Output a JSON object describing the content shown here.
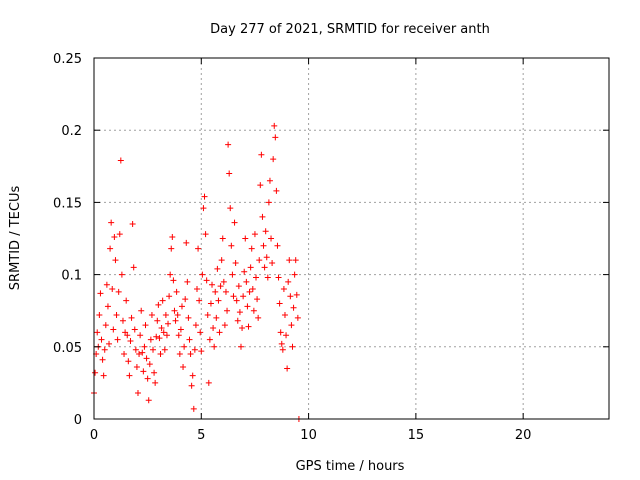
{
  "chart_data": {
    "type": "scatter",
    "title": "Day 277 of 2021, SRMTID for receiver anth",
    "xlabel": "GPS time / hours",
    "ylabel": "SRMTID / TECUs",
    "xlim": [
      0,
      24
    ],
    "ylim": [
      0,
      0.25
    ],
    "xticks": [
      0,
      5,
      10,
      15,
      20
    ],
    "xtick_labels": [
      "0",
      "5",
      "10",
      "15",
      "20"
    ],
    "yticks": [
      0,
      0.05,
      0.1,
      0.15,
      0.2,
      0.25
    ],
    "ytick_labels": [
      "0",
      "0.05",
      "0.1",
      "0.15",
      "0.2",
      "0.25"
    ],
    "grid": true,
    "marker": "+",
    "color": "#ff0000",
    "series": [
      {
        "name": "SRMTID",
        "points": [
          [
            0.0,
            0.018
          ],
          [
            0.05,
            0.032
          ],
          [
            0.1,
            0.045
          ],
          [
            0.15,
            0.06
          ],
          [
            0.2,
            0.05
          ],
          [
            0.25,
            0.072
          ],
          [
            0.3,
            0.087
          ],
          [
            0.35,
            0.055
          ],
          [
            0.4,
            0.041
          ],
          [
            0.45,
            0.03
          ],
          [
            0.5,
            0.048
          ],
          [
            0.55,
            0.065
          ],
          [
            0.6,
            0.093
          ],
          [
            0.65,
            0.078
          ],
          [
            0.7,
            0.052
          ],
          [
            0.75,
            0.118
          ],
          [
            0.8,
            0.136
          ],
          [
            0.85,
            0.09
          ],
          [
            0.9,
            0.062
          ],
          [
            0.95,
            0.126
          ],
          [
            1.0,
            0.11
          ],
          [
            1.05,
            0.072
          ],
          [
            1.1,
            0.055
          ],
          [
            1.15,
            0.088
          ],
          [
            1.2,
            0.128
          ],
          [
            1.25,
            0.179
          ],
          [
            1.3,
            0.1
          ],
          [
            1.35,
            0.068
          ],
          [
            1.4,
            0.045
          ],
          [
            1.45,
            0.06
          ],
          [
            1.5,
            0.082
          ],
          [
            1.55,
            0.058
          ],
          [
            1.6,
            0.04
          ],
          [
            1.65,
            0.03
          ],
          [
            1.7,
            0.054
          ],
          [
            1.75,
            0.07
          ],
          [
            1.8,
            0.135
          ],
          [
            1.85,
            0.105
          ],
          [
            1.9,
            0.062
          ],
          [
            1.95,
            0.048
          ],
          [
            2.0,
            0.036
          ],
          [
            2.05,
            0.018
          ],
          [
            2.1,
            0.045
          ],
          [
            2.15,
            0.058
          ],
          [
            2.2,
            0.075
          ],
          [
            2.25,
            0.046
          ],
          [
            2.3,
            0.033
          ],
          [
            2.35,
            0.05
          ],
          [
            2.4,
            0.065
          ],
          [
            2.45,
            0.042
          ],
          [
            2.5,
            0.028
          ],
          [
            2.55,
            0.013
          ],
          [
            2.6,
            0.038
          ],
          [
            2.65,
            0.055
          ],
          [
            2.7,
            0.072
          ],
          [
            2.75,
            0.048
          ],
          [
            2.8,
            0.032
          ],
          [
            2.85,
            0.025
          ],
          [
            2.9,
            0.057
          ],
          [
            2.95,
            0.068
          ],
          [
            3.0,
            0.079
          ],
          [
            3.05,
            0.056
          ],
          [
            3.1,
            0.045
          ],
          [
            3.15,
            0.063
          ],
          [
            3.2,
            0.082
          ],
          [
            3.25,
            0.06
          ],
          [
            3.3,
            0.048
          ],
          [
            3.35,
            0.072
          ],
          [
            3.4,
            0.058
          ],
          [
            3.45,
            0.066
          ],
          [
            3.5,
            0.085
          ],
          [
            3.55,
            0.1
          ],
          [
            3.6,
            0.118
          ],
          [
            3.65,
            0.126
          ],
          [
            3.7,
            0.096
          ],
          [
            3.75,
            0.075
          ],
          [
            3.8,
            0.068
          ],
          [
            3.85,
            0.088
          ],
          [
            3.9,
            0.072
          ],
          [
            3.95,
            0.058
          ],
          [
            4.0,
            0.045
          ],
          [
            4.05,
            0.062
          ],
          [
            4.1,
            0.078
          ],
          [
            4.15,
            0.036
          ],
          [
            4.2,
            0.05
          ],
          [
            4.25,
            0.083
          ],
          [
            4.3,
            0.122
          ],
          [
            4.35,
            0.095
          ],
          [
            4.4,
            0.07
          ],
          [
            4.45,
            0.055
          ],
          [
            4.5,
            0.045
          ],
          [
            4.55,
            0.023
          ],
          [
            4.6,
            0.03
          ],
          [
            4.65,
            0.007
          ],
          [
            4.7,
            0.048
          ],
          [
            4.75,
            0.065
          ],
          [
            4.8,
            0.09
          ],
          [
            4.85,
            0.118
          ],
          [
            4.9,
            0.082
          ],
          [
            4.95,
            0.06
          ],
          [
            5.0,
            0.047
          ],
          [
            5.05,
            0.1
          ],
          [
            5.1,
            0.146
          ],
          [
            5.15,
            0.154
          ],
          [
            5.2,
            0.128
          ],
          [
            5.25,
            0.096
          ],
          [
            5.3,
            0.072
          ],
          [
            5.35,
            0.025
          ],
          [
            5.4,
            0.055
          ],
          [
            5.45,
            0.08
          ],
          [
            5.5,
            0.093
          ],
          [
            5.55,
            0.063
          ],
          [
            5.6,
            0.05
          ],
          [
            5.65,
            0.088
          ],
          [
            5.7,
            0.07
          ],
          [
            5.75,
            0.104
          ],
          [
            5.8,
            0.082
          ],
          [
            5.85,
            0.06
          ],
          [
            5.9,
            0.092
          ],
          [
            5.95,
            0.11
          ],
          [
            6.0,
            0.125
          ],
          [
            6.05,
            0.095
          ],
          [
            6.1,
            0.065
          ],
          [
            6.15,
            0.088
          ],
          [
            6.2,
            0.075
          ],
          [
            6.25,
            0.19
          ],
          [
            6.3,
            0.17
          ],
          [
            6.35,
            0.146
          ],
          [
            6.4,
            0.12
          ],
          [
            6.45,
            0.1
          ],
          [
            6.5,
            0.085
          ],
          [
            6.55,
            0.136
          ],
          [
            6.6,
            0.108
          ],
          [
            6.65,
            0.082
          ],
          [
            6.7,
            0.068
          ],
          [
            6.75,
            0.092
          ],
          [
            6.8,
            0.074
          ],
          [
            6.85,
            0.05
          ],
          [
            6.9,
            0.063
          ],
          [
            6.95,
            0.085
          ],
          [
            7.0,
            0.102
          ],
          [
            7.05,
            0.125
          ],
          [
            7.1,
            0.095
          ],
          [
            7.15,
            0.078
          ],
          [
            7.2,
            0.064
          ],
          [
            7.25,
            0.088
          ],
          [
            7.3,
            0.105
          ],
          [
            7.35,
            0.118
          ],
          [
            7.4,
            0.09
          ],
          [
            7.45,
            0.075
          ],
          [
            7.5,
            0.128
          ],
          [
            7.55,
            0.098
          ],
          [
            7.6,
            0.083
          ],
          [
            7.65,
            0.07
          ],
          [
            7.7,
            0.11
          ],
          [
            7.75,
            0.162
          ],
          [
            7.8,
            0.183
          ],
          [
            7.85,
            0.14
          ],
          [
            7.9,
            0.12
          ],
          [
            7.95,
            0.105
          ],
          [
            8.0,
            0.13
          ],
          [
            8.05,
            0.112
          ],
          [
            8.1,
            0.098
          ],
          [
            8.15,
            0.15
          ],
          [
            8.2,
            0.165
          ],
          [
            8.25,
            0.125
          ],
          [
            8.3,
            0.108
          ],
          [
            8.35,
            0.18
          ],
          [
            8.4,
            0.203
          ],
          [
            8.45,
            0.195
          ],
          [
            8.5,
            0.158
          ],
          [
            8.55,
            0.12
          ],
          [
            8.6,
            0.098
          ],
          [
            8.65,
            0.08
          ],
          [
            8.7,
            0.06
          ],
          [
            8.75,
            0.052
          ],
          [
            8.8,
            0.048
          ],
          [
            8.85,
            0.09
          ],
          [
            8.9,
            0.072
          ],
          [
            8.95,
            0.058
          ],
          [
            9.0,
            0.035
          ],
          [
            9.05,
            0.095
          ],
          [
            9.1,
            0.11
          ],
          [
            9.15,
            0.085
          ],
          [
            9.2,
            0.065
          ],
          [
            9.25,
            0.05
          ],
          [
            9.3,
            0.077
          ],
          [
            9.35,
            0.1
          ],
          [
            9.4,
            0.11
          ],
          [
            9.45,
            0.086
          ],
          [
            9.5,
            0.07
          ],
          [
            9.55,
            0.0
          ]
        ]
      }
    ]
  }
}
